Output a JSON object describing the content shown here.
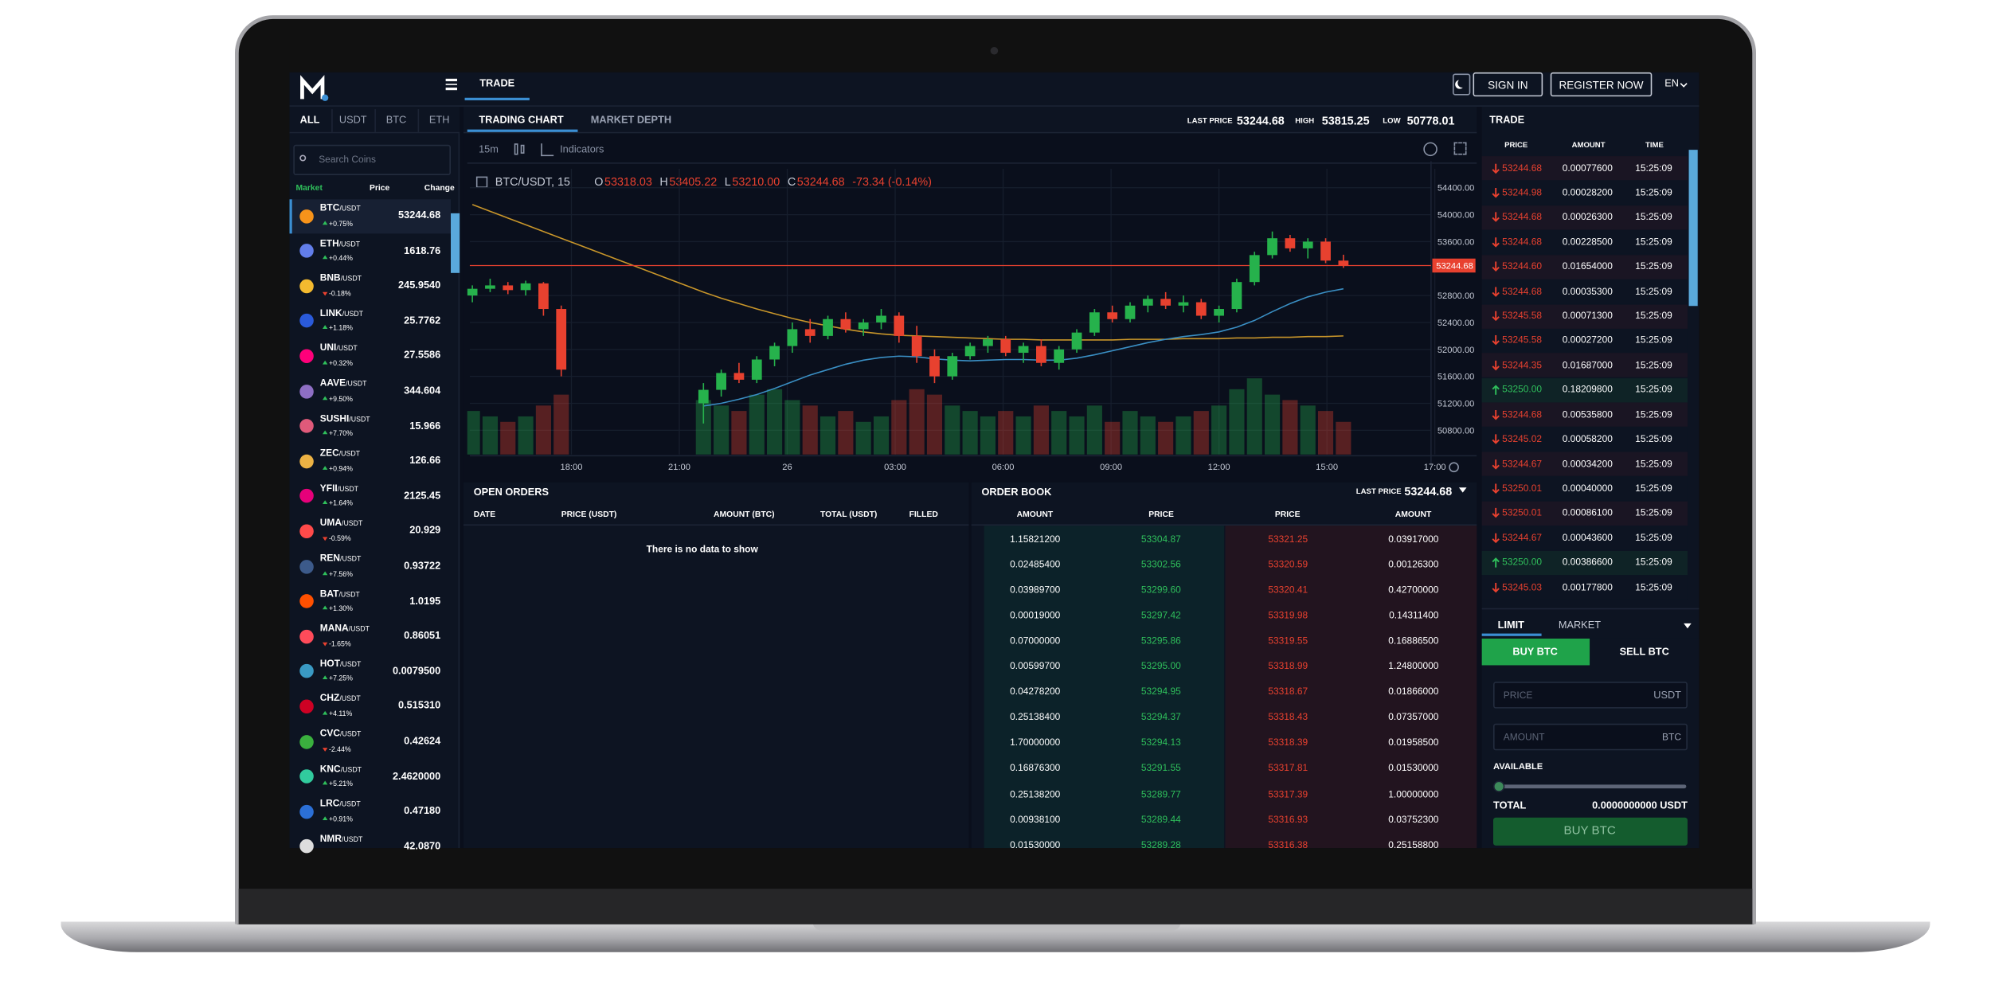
{
  "header": {
    "nav_tab": "TRADE",
    "sign_in": "SIGN IN",
    "register": "REGISTER NOW",
    "language": "EN"
  },
  "market_tabs": [
    "ALL",
    "USDT",
    "BTC",
    "ETH"
  ],
  "search_placeholder": "Search Coins",
  "coin_columns": [
    "Market",
    "Price",
    "Change"
  ],
  "coins": [
    {
      "symbol": "BTC",
      "quote": "/USDT",
      "change": "+0.75%",
      "price": "53244.68",
      "icon": "#f7931a"
    },
    {
      "symbol": "ETH",
      "quote": "/USDT",
      "change": "+0.44%",
      "price": "1618.76",
      "icon": "#627eea"
    },
    {
      "symbol": "BNB",
      "quote": "/USDT",
      "change": "-0.18%",
      "price": "245.9540",
      "icon": "#f3ba2f"
    },
    {
      "symbol": "LINK",
      "quote": "/USDT",
      "change": "+1.18%",
      "price": "25.7762",
      "icon": "#2a5ada"
    },
    {
      "symbol": "UNI",
      "quote": "/USDT",
      "change": "+0.32%",
      "price": "27.5586",
      "icon": "#ff007a"
    },
    {
      "symbol": "AAVE",
      "quote": "/USDT",
      "change": "+9.50%",
      "price": "344.604",
      "icon": "#8e6fc4"
    },
    {
      "symbol": "SUSHI",
      "quote": "/USDT",
      "change": "+7.70%",
      "price": "15.966",
      "icon": "#e05a7a"
    },
    {
      "symbol": "ZEC",
      "quote": "/USDT",
      "change": "+0.94%",
      "price": "126.66",
      "icon": "#ecb244"
    },
    {
      "symbol": "YFII",
      "quote": "/USDT",
      "change": "+1.64%",
      "price": "2125.45",
      "icon": "#e6007a"
    },
    {
      "symbol": "UMA",
      "quote": "/USDT",
      "change": "-0.59%",
      "price": "20.929",
      "icon": "#ff4a4a"
    },
    {
      "symbol": "REN",
      "quote": "/USDT",
      "change": "+7.56%",
      "price": "0.93722",
      "icon": "#3c5a8a"
    },
    {
      "symbol": "BAT",
      "quote": "/USDT",
      "change": "+1.30%",
      "price": "1.0195",
      "icon": "#ff5000"
    },
    {
      "symbol": "MANA",
      "quote": "/USDT",
      "change": "-1.65%",
      "price": "0.86051",
      "icon": "#ff4b5a"
    },
    {
      "symbol": "HOT",
      "quote": "/USDT",
      "change": "+7.25%",
      "price": "0.0079500",
      "icon": "#3a9ac4"
    },
    {
      "symbol": "CHZ",
      "quote": "/USDT",
      "change": "+4.11%",
      "price": "0.515310",
      "icon": "#cd0124"
    },
    {
      "symbol": "CVC",
      "quote": "/USDT",
      "change": "-2.44%",
      "price": "0.42624",
      "icon": "#3ab03e"
    },
    {
      "symbol": "KNC",
      "quote": "/USDT",
      "change": "+5.21%",
      "price": "2.4620000",
      "icon": "#31cb9e"
    },
    {
      "symbol": "LRC",
      "quote": "/USDT",
      "change": "+0.91%",
      "price": "0.47180",
      "icon": "#2b6fd6"
    },
    {
      "symbol": "NMR",
      "quote": "/USDT",
      "price": "42.0870",
      "icon": "#dddddd"
    }
  ],
  "chart_tabs": [
    "TRADING CHART",
    "MARKET DEPTH"
  ],
  "stats": {
    "last_price_label": "LAST PRICE",
    "last_price": "53244.68",
    "high_label": "HIGH",
    "high": "53815.25",
    "low_label": "LOW",
    "low": "50778.01"
  },
  "toolbar": {
    "interval": "15m",
    "indicators": "Indicators"
  },
  "chart": {
    "type": "candlestick",
    "symbol": "BTC/USDT, 15",
    "legend": {
      "open_label": "O",
      "open": "53318.03",
      "high_label": "H",
      "high": "53405.22",
      "low_label": "L",
      "low": "53210.00",
      "close_label": "C",
      "close": "53244.68",
      "change": "-73.34 (-0.14%)"
    },
    "up_color": "#26b24c",
    "down_color": "#e8412f",
    "open": [
      52800,
      52900,
      52950,
      52880,
      52980,
      52600,
      null,
      null,
      null,
      null,
      null,
      null,
      null,
      51200,
      51400,
      51650,
      51550,
      51850,
      52050,
      52300,
      52200,
      52450,
      52300,
      52400,
      52500,
      52200,
      51900,
      51600,
      51900,
      52050,
      52150,
      51950,
      52050,
      51800,
      52000,
      52250,
      52550,
      52450,
      52650,
      52750,
      52650,
      52700,
      52500,
      52600,
      53000,
      53400,
      53650,
      53500,
      53600,
      53318.03
    ],
    "high": [
      52950,
      53050,
      53000,
      53020,
      53000,
      52650,
      null,
      null,
      null,
      null,
      null,
      null,
      null,
      51500,
      51700,
      51800,
      51900,
      52100,
      52400,
      52450,
      52500,
      52550,
      52450,
      52600,
      52550,
      52350,
      52000,
      51950,
      52100,
      52200,
      52200,
      52100,
      52150,
      52050,
      52300,
      52600,
      52650,
      52700,
      52800,
      52850,
      52800,
      52750,
      52650,
      53050,
      53450,
      53750,
      53700,
      53650,
      53650,
      53405.22
    ],
    "low": [
      52700,
      52850,
      52820,
      52800,
      52500,
      51600,
      null,
      null,
      null,
      null,
      null,
      null,
      null,
      50900,
      51300,
      51500,
      51500,
      51750,
      51950,
      52100,
      52150,
      52250,
      52200,
      52300,
      52100,
      51800,
      51500,
      51550,
      51850,
      51950,
      51900,
      51800,
      51750,
      51700,
      51950,
      52200,
      52400,
      52400,
      52550,
      52600,
      52550,
      52450,
      52400,
      52550,
      52950,
      53350,
      53450,
      53350,
      53280,
      53210
    ],
    "close": [
      52900,
      52950,
      52880,
      52980,
      52600,
      51700,
      null,
      null,
      null,
      null,
      null,
      null,
      null,
      51400,
      51650,
      51550,
      51850,
      52050,
      52300,
      52200,
      52450,
      52300,
      52400,
      52500,
      52200,
      51900,
      51600,
      51900,
      52050,
      52150,
      51950,
      52050,
      51800,
      52000,
      52250,
      52550,
      52450,
      52650,
      52750,
      52650,
      52700,
      52500,
      52600,
      53000,
      53400,
      53650,
      53500,
      53600,
      53318.03,
      53244.68
    ],
    "volume": [
      40,
      35,
      30,
      35,
      45,
      55,
      null,
      null,
      null,
      null,
      null,
      null,
      null,
      50,
      45,
      40,
      55,
      60,
      50,
      45,
      35,
      40,
      30,
      35,
      50,
      60,
      55,
      45,
      40,
      35,
      40,
      35,
      45,
      40,
      35,
      45,
      30,
      40,
      35,
      30,
      35,
      40,
      45,
      60,
      70,
      55,
      50,
      45,
      40,
      30
    ],
    "indicators": [
      {
        "color": "#c9962a",
        "values": [
          54150,
          54050,
          53950,
          53850,
          53750,
          53650,
          53550,
          53450,
          53350,
          53250,
          53150,
          53050,
          52950,
          52850,
          52760,
          52680,
          52600,
          52530,
          52460,
          52400,
          52350,
          52300,
          52260,
          52230,
          52210,
          52200,
          52190,
          52180,
          52170,
          52160,
          52150,
          52150,
          52140,
          52140,
          52140,
          52140,
          52140,
          52150,
          52150,
          52150,
          52160,
          52160,
          52160,
          52170,
          52170,
          52180,
          52180,
          52190,
          52190,
          52200
        ]
      },
      {
        "color": "#3a8fc4",
        "values": [
          null,
          null,
          null,
          null,
          null,
          null,
          null,
          null,
          null,
          null,
          null,
          null,
          null,
          51160,
          51200,
          51260,
          51330,
          51420,
          51520,
          51620,
          51700,
          51780,
          51840,
          51880,
          51900,
          51890,
          51860,
          51840,
          51830,
          51840,
          51850,
          51850,
          51840,
          51840,
          51870,
          51920,
          51980,
          52040,
          52100,
          52150,
          52190,
          52220,
          52260,
          52330,
          52430,
          52560,
          52680,
          52780,
          52850,
          52900
        ]
      }
    ],
    "ylim": [
      50440,
      54680
    ],
    "yticks": [
      {
        "value": 54400,
        "label": "54400.00"
      },
      {
        "value": 54000,
        "label": "54000.00"
      },
      {
        "value": 53600,
        "label": "53600.00"
      },
      {
        "value": 52800,
        "label": "52800.00"
      },
      {
        "value": 52400,
        "label": "52400.00"
      },
      {
        "value": 52000,
        "label": "52000.00"
      },
      {
        "value": 51600,
        "label": "51600.00"
      },
      {
        "value": 51200,
        "label": "51200.00"
      },
      {
        "value": 50800,
        "label": "50800.00"
      }
    ],
    "xticks": [
      "18:00",
      "21:00",
      "26",
      "03:00",
      "06:00",
      "09:00",
      "12:00",
      "15:00",
      "17:00"
    ],
    "grid": true
  },
  "open_orders": {
    "title": "OPEN ORDERS",
    "columns": [
      "DATE",
      "PRICE (USDT)",
      "AMOUNT (BTC)",
      "TOTAL (USDT)",
      "FILLED"
    ],
    "empty": "There is no data to show"
  },
  "order_book": {
    "title": "ORDER BOOK",
    "last_price_label": "LAST PRICE",
    "last_price": "53244.68",
    "columns": [
      "AMOUNT",
      "PRICE",
      "PRICE",
      "AMOUNT"
    ],
    "bids": [
      [
        "1.15821200",
        "53304.87"
      ],
      [
        "0.02485400",
        "53302.56"
      ],
      [
        "0.03989700",
        "53299.60"
      ],
      [
        "0.00019000",
        "53297.42"
      ],
      [
        "0.07000000",
        "53295.86"
      ],
      [
        "0.00599700",
        "53295.00"
      ],
      [
        "0.04278200",
        "53294.95"
      ],
      [
        "0.25138400",
        "53294.37"
      ],
      [
        "1.70000000",
        "53294.13"
      ],
      [
        "0.16876300",
        "53291.55"
      ],
      [
        "0.25138200",
        "53289.77"
      ],
      [
        "0.00938100",
        "53289.44"
      ],
      [
        "0.01530000",
        "53289.28"
      ]
    ],
    "asks": [
      [
        "53321.25",
        "0.03917000"
      ],
      [
        "53320.59",
        "0.00126300"
      ],
      [
        "53320.41",
        "0.42700000"
      ],
      [
        "53319.98",
        "0.14311400"
      ],
      [
        "53319.55",
        "0.16886500"
      ],
      [
        "53318.99",
        "1.24800000"
      ],
      [
        "53318.67",
        "0.01866000"
      ],
      [
        "53318.43",
        "0.07357000"
      ],
      [
        "53318.39",
        "0.01958500"
      ],
      [
        "53317.81",
        "0.01530000"
      ],
      [
        "53317.39",
        "1.00000000"
      ],
      [
        "53316.93",
        "0.03752300"
      ],
      [
        "53316.38",
        "0.25158800"
      ]
    ]
  },
  "trades": {
    "title": "TRADE",
    "columns": [
      "PRICE",
      "AMOUNT",
      "TIME"
    ],
    "rows": [
      {
        "price": "53244.68",
        "amount": "0.00077600",
        "time": "15:25:09",
        "direction": "down"
      },
      {
        "price": "53244.98",
        "amount": "0.00028200",
        "time": "15:25:09",
        "direction": "down"
      },
      {
        "price": "53244.68",
        "amount": "0.00026300",
        "time": "15:25:09",
        "direction": "down"
      },
      {
        "price": "53244.68",
        "amount": "0.00228500",
        "time": "15:25:09",
        "direction": "down"
      },
      {
        "price": "53244.60",
        "amount": "0.01654000",
        "time": "15:25:09",
        "direction": "down"
      },
      {
        "price": "53244.68",
        "amount": "0.00035300",
        "time": "15:25:09",
        "direction": "down"
      },
      {
        "price": "53245.58",
        "amount": "0.00071300",
        "time": "15:25:09",
        "direction": "down"
      },
      {
        "price": "53245.58",
        "amount": "0.00027200",
        "time": "15:25:09",
        "direction": "down"
      },
      {
        "price": "53244.35",
        "amount": "0.01687000",
        "time": "15:25:09",
        "direction": "down"
      },
      {
        "price": "53250.00",
        "amount": "0.18209800",
        "time": "15:25:09",
        "direction": "up"
      },
      {
        "price": "53244.68",
        "amount": "0.00535800",
        "time": "15:25:09",
        "direction": "down"
      },
      {
        "price": "53245.02",
        "amount": "0.00058200",
        "time": "15:25:09",
        "direction": "down"
      },
      {
        "price": "53244.67",
        "amount": "0.00034200",
        "time": "15:25:09",
        "direction": "down"
      },
      {
        "price": "53250.01",
        "amount": "0.00040000",
        "time": "15:25:09",
        "direction": "down"
      },
      {
        "price": "53250.01",
        "amount": "0.00086100",
        "time": "15:25:09",
        "direction": "down"
      },
      {
        "price": "53244.67",
        "amount": "0.00043600",
        "time": "15:25:09",
        "direction": "down"
      },
      {
        "price": "53250.00",
        "amount": "0.00386600",
        "time": "15:25:09",
        "direction": "up"
      },
      {
        "price": "53245.03",
        "amount": "0.00177800",
        "time": "15:25:09",
        "direction": "down"
      }
    ]
  },
  "order_form": {
    "tabs": [
      "LIMIT",
      "MARKET"
    ],
    "buy_tab": "BUY BTC",
    "sell_tab": "SELL BTC",
    "price_placeholder": "PRICE",
    "price_unit": "USDT",
    "amount_placeholder": "AMOUNT",
    "amount_unit": "BTC",
    "available_label": "AVAILABLE",
    "total_label": "TOTAL",
    "total_value": "0.0000000000 USDT",
    "submit": "BUY BTC"
  }
}
